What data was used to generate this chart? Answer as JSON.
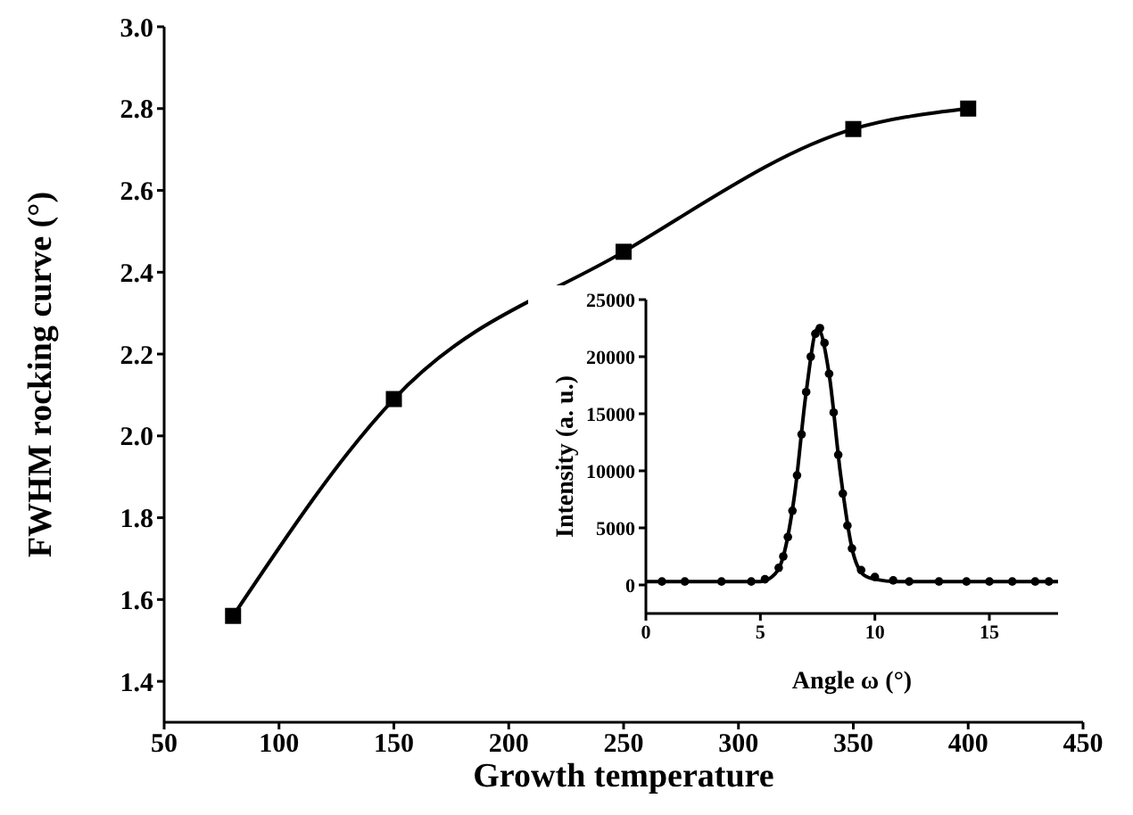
{
  "chart_data": [
    {
      "type": "line",
      "xlabel": "Growth temperature",
      "ylabel": "FWHM rocking curve (°)",
      "x": [
        80,
        150,
        250,
        350,
        400
      ],
      "values": [
        1.56,
        2.09,
        2.45,
        2.75,
        2.8
      ],
      "color": "#000000",
      "marker": "square",
      "xlim": [
        50,
        450
      ],
      "xticks": [
        50,
        100,
        150,
        200,
        250,
        300,
        350,
        400,
        450
      ],
      "ylim": [
        1.3,
        3.0
      ],
      "yticks": [
        {
          "value": 1.4,
          "label": "1.4"
        },
        {
          "value": 1.6,
          "label": "1.6"
        },
        {
          "value": 1.8,
          "label": "1.8"
        },
        {
          "value": 2,
          "label": "2.0"
        },
        {
          "value": 2.2,
          "label": "2.2"
        },
        {
          "value": 2.4,
          "label": "2.4"
        },
        {
          "value": 2.6,
          "label": "2.6"
        },
        {
          "value": 2.8,
          "label": "2.8"
        },
        {
          "value": 3,
          "label": "3.0"
        }
      ]
    },
    {
      "type": "scatter",
      "xlabel": "Angle ω (°)",
      "ylabel": "Intensity (a. u.)",
      "marker": "circle",
      "xlim": [
        0,
        18
      ],
      "xticks": [
        0,
        5,
        10,
        15
      ],
      "ylim": [
        -2500,
        25000
      ],
      "yticks": [
        0,
        5000,
        10000,
        15000,
        20000,
        25000
      ],
      "series": [
        {
          "color": "#000000",
          "x": [
            0.7,
            1.7,
            3.3,
            4.6,
            5.2,
            5.8,
            6.0,
            6.2,
            6.4,
            6.6,
            6.8,
            7.0,
            7.2,
            7.4,
            7.6,
            7.8,
            8.0,
            8.2,
            8.4,
            8.6,
            8.8,
            9.0,
            9.4,
            10.0,
            10.8,
            11.5,
            12.8,
            14.0,
            15.0,
            16.0,
            17.0,
            17.6
          ],
          "values": [
            300,
            300,
            300,
            300,
            500,
            1500,
            2500,
            4200,
            6500,
            9600,
            13200,
            16900,
            20000,
            22000,
            22500,
            21200,
            18500,
            15100,
            11400,
            8000,
            5200,
            3200,
            1300,
            700,
            400,
            300,
            300,
            300,
            300,
            300,
            300,
            300
          ]
        },
        {
          "type": "line",
          "color": "#000000",
          "marker": "none",
          "x": [
            0,
            5,
            5.5,
            6,
            6.5,
            7,
            7.5,
            8,
            8.5,
            9,
            9.5,
            10,
            11,
            18
          ],
          "values": [
            300,
            300,
            700,
            2500,
            8000,
            16900,
            22500,
            18500,
            9700,
            3200,
            900,
            500,
            300,
            300
          ]
        }
      ]
    }
  ]
}
